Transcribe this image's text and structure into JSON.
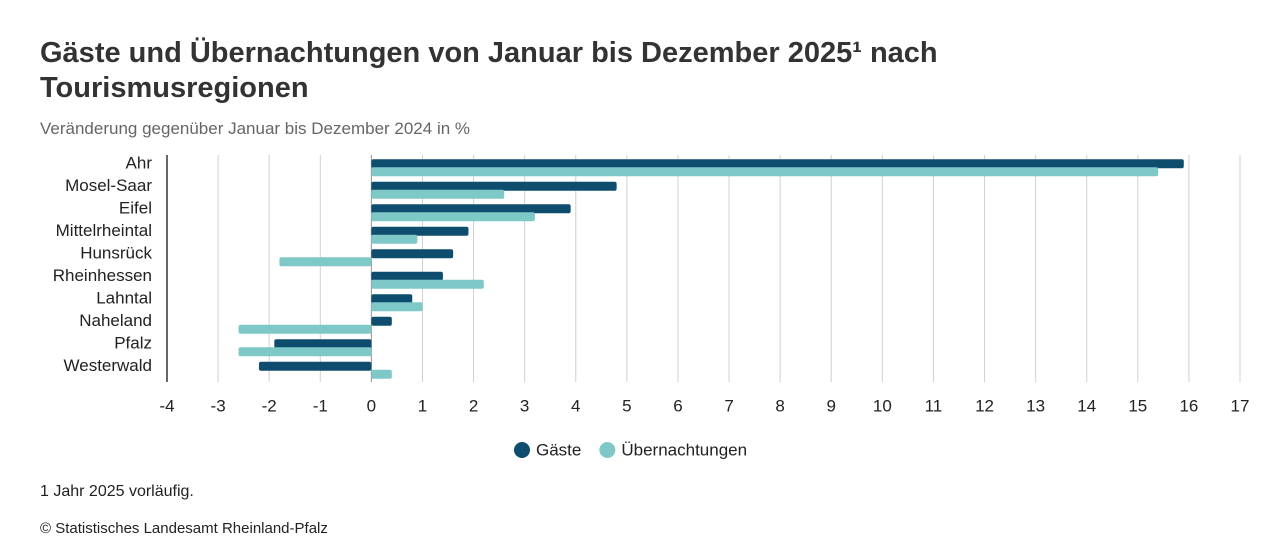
{
  "chart_data": {
    "type": "barh",
    "title": "Gäste und Übernachtungen von Januar bis Dezember 2025¹ nach Tourismusregionen",
    "subtitle": "Veränderung gegenüber Januar bis Dezember 2024 in %",
    "categories": [
      "Ahr",
      "Mosel-Saar",
      "Eifel",
      "Mittelrheintal",
      "Hunsrück",
      "Rheinhessen",
      "Lahntal",
      "Naheland",
      "Pfalz",
      "Westerwald"
    ],
    "series": [
      {
        "name": "Gäste",
        "color": "#0e4d6e",
        "values": [
          15.9,
          4.8,
          3.9,
          1.9,
          1.6,
          1.4,
          0.8,
          0.4,
          -1.9,
          -2.2
        ]
      },
      {
        "name": "Übernachtungen",
        "color": "#7ec8c8",
        "values": [
          15.4,
          2.6,
          3.2,
          0.9,
          -1.8,
          2.2,
          1.0,
          -2.6,
          -2.6,
          0.4
        ]
      }
    ],
    "xlim": [
      -4,
      17
    ],
    "xticks": [
      -4,
      -3,
      -2,
      -1,
      0,
      1,
      2,
      3,
      4,
      5,
      6,
      7,
      8,
      9,
      10,
      11,
      12,
      13,
      14,
      15,
      16,
      17
    ],
    "grid": true,
    "legend": "bottom",
    "note": "1 Jahr 2025 vorläufig.",
    "source": "© Statistisches Landesamt Rheinland-Pfalz"
  }
}
